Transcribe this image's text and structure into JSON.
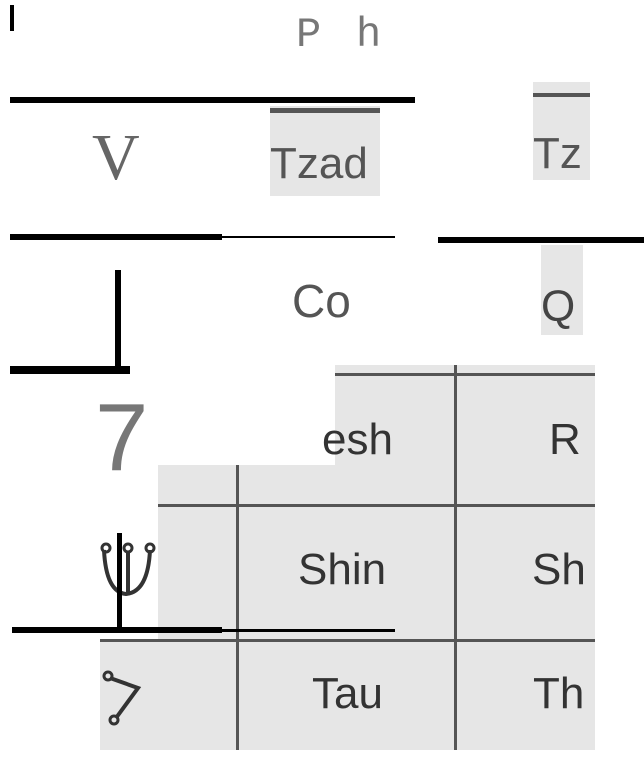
{
  "fragments": {
    "top_p": "P",
    "top_h": "h",
    "v": "V",
    "tzad": "Tzad",
    "tz": "Tz",
    "co": "Co",
    "q": "Q",
    "seven": "7"
  },
  "table": {
    "rows": [
      [
        "esh",
        "R"
      ],
      [
        "Shin",
        "Sh"
      ],
      [
        "Tau",
        "Th"
      ]
    ]
  }
}
